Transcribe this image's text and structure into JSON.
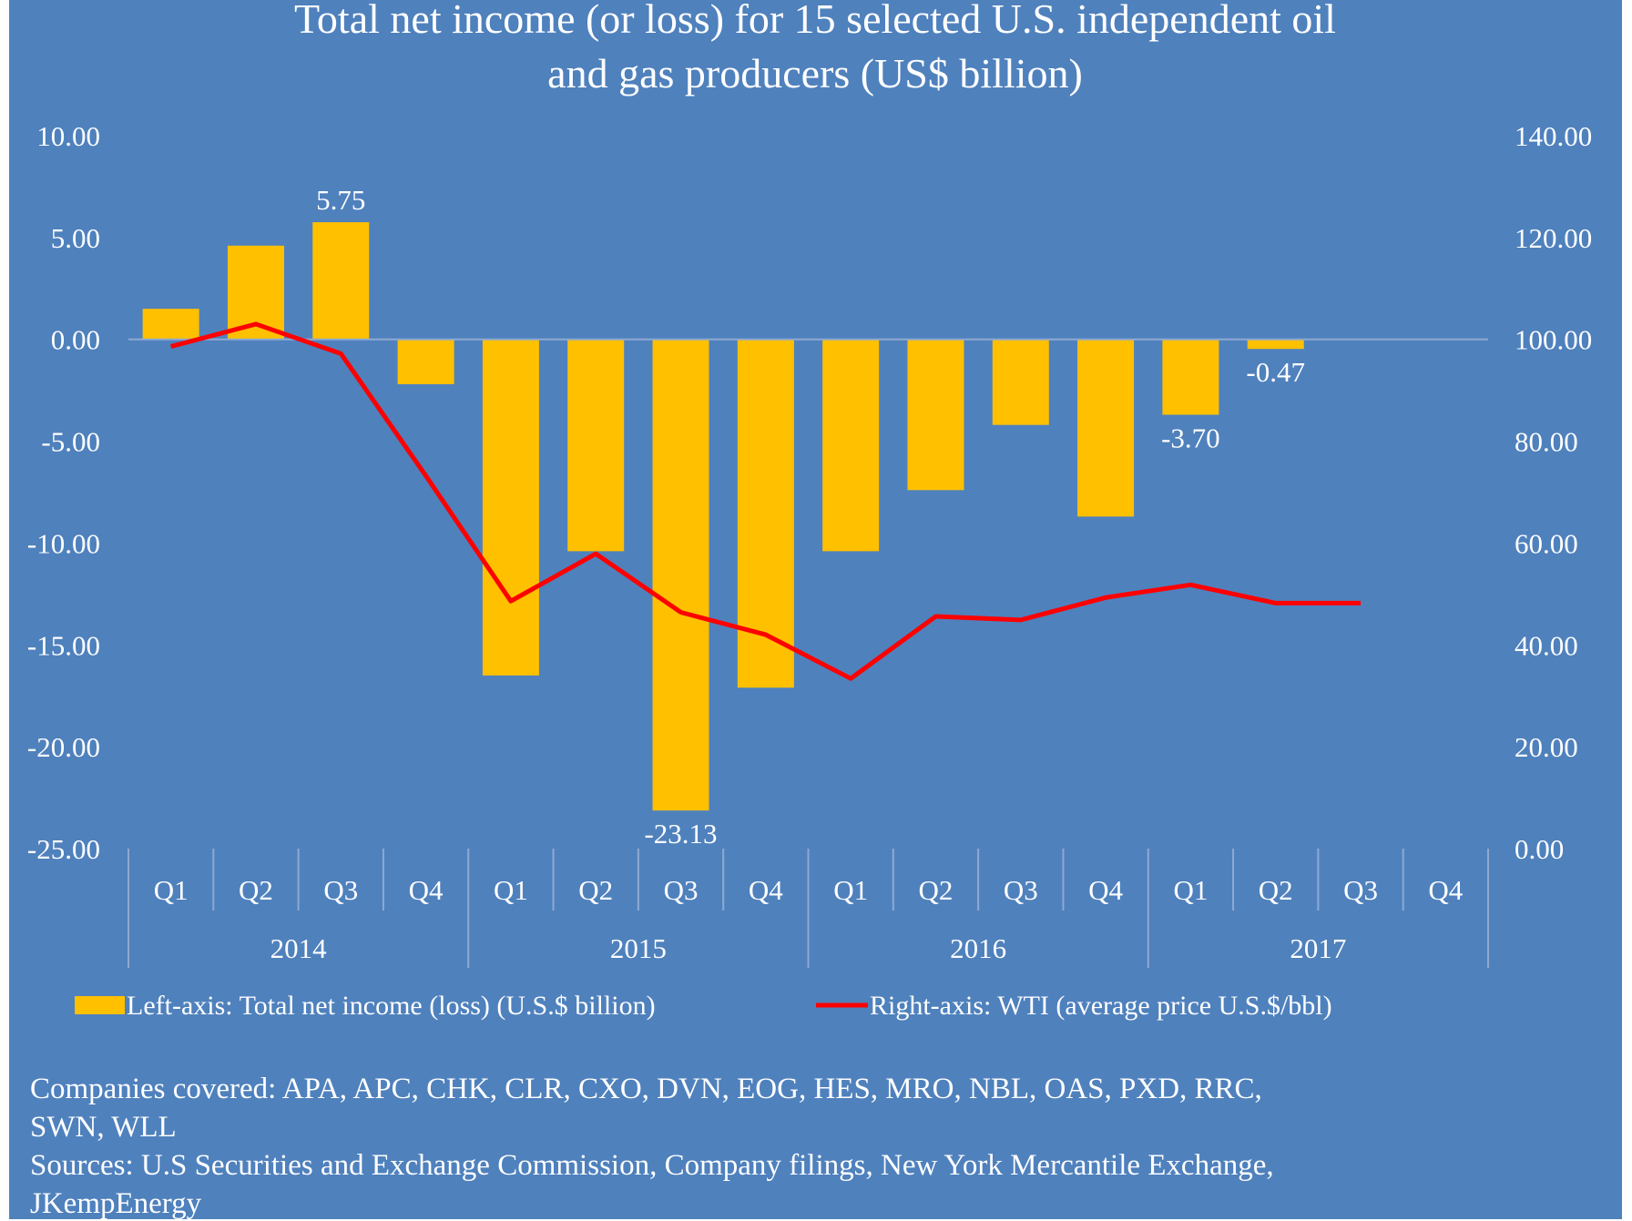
{
  "chart_data": {
    "type": "bar+line",
    "title_lines": [
      "Total net income (or loss) for 15 selected U.S. independent oil",
      "and gas producers (US$ billion)"
    ],
    "categories": [
      "Q1",
      "Q2",
      "Q3",
      "Q4",
      "Q1",
      "Q2",
      "Q3",
      "Q4",
      "Q1",
      "Q2",
      "Q3",
      "Q4",
      "Q1",
      "Q2",
      "Q3",
      "Q4"
    ],
    "years": [
      "2014",
      "2015",
      "2016",
      "2017"
    ],
    "series": [
      {
        "name": "Left-axis: Total net income (loss) (U.S.$ billion)",
        "type": "bar",
        "axis": "left",
        "color": "#FFC000",
        "values": [
          1.5,
          4.6,
          5.75,
          -2.2,
          -16.5,
          -10.4,
          -23.13,
          -17.1,
          -10.4,
          -7.4,
          -4.2,
          -8.7,
          -3.7,
          -0.47,
          null,
          null
        ]
      },
      {
        "name": "Right-axis: WTI (average price U.S.$/bbl)",
        "type": "line",
        "axis": "right",
        "color": "#FF0000",
        "values": [
          98.6,
          103.0,
          97.2,
          73.2,
          48.6,
          57.9,
          46.4,
          42.0,
          33.4,
          45.6,
          44.9,
          49.3,
          51.8,
          48.2,
          48.2,
          null
        ]
      }
    ],
    "data_labels": [
      {
        "index": 2,
        "text": "5.75"
      },
      {
        "index": 6,
        "text": "-23.13"
      },
      {
        "index": 12,
        "text": "-3.70"
      },
      {
        "index": 13,
        "text": "-0.47"
      }
    ],
    "left_axis": {
      "ylim": [
        -25,
        10
      ],
      "ticks": [
        "10.00",
        "5.00",
        "0.00",
        "-5.00",
        "-10.00",
        "-15.00",
        "-20.00",
        "-25.00"
      ]
    },
    "right_axis": {
      "ylim": [
        0,
        140
      ],
      "ticks": [
        "140.00",
        "120.00",
        "100.00",
        "80.00",
        "60.00",
        "40.00",
        "20.00",
        "0.00"
      ]
    },
    "grid": false,
    "legend": "bottom",
    "background": "#4F81BD"
  },
  "footnotes": [
    "Companies covered:  APA, APC, CHK, CLR, CXO, DVN, EOG, HES, MRO, NBL, OAS, PXD, RRC,",
    "SWN, WLL",
    "Sources:  U.S Securities and Exchange Commission, Company filings, New York Mercantile Exchange,",
    "JKempEnergy"
  ]
}
